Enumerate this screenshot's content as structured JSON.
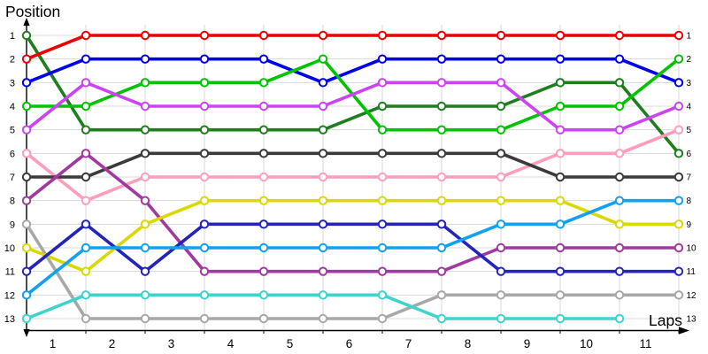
{
  "chart_data": {
    "type": "line",
    "title": "",
    "ylabel": "Position",
    "xlabel": "Laps",
    "x_tick_labels": [
      "1",
      "2",
      "3",
      "4",
      "5",
      "6",
      "7",
      "8",
      "9",
      "10",
      "11"
    ],
    "left_axis_labels": [
      "1",
      "2",
      "3",
      "4",
      "5",
      "6",
      "7",
      "8",
      "9",
      "10",
      "11",
      "12",
      "13"
    ],
    "right_axis_labels": [
      "1",
      "2",
      "3",
      "4",
      "5",
      "6",
      "7",
      "8",
      "9",
      "10",
      "11",
      "12",
      "13"
    ],
    "columns_per_series": 12,
    "y_axis_range": [
      1,
      13
    ],
    "y_axis_inverted": true,
    "grid": true,
    "legend": "none",
    "marker": "open-circle",
    "series": [
      {
        "name": "dark-green",
        "color": "#1e7e1e",
        "positions": [
          1,
          5,
          5,
          5,
          5,
          5,
          4,
          4,
          4,
          3,
          3,
          6
        ]
      },
      {
        "name": "red",
        "color": "#ee0000",
        "positions": [
          2,
          1,
          1,
          1,
          1,
          1,
          1,
          1,
          1,
          1,
          1,
          1
        ]
      },
      {
        "name": "blue",
        "color": "#0000ee",
        "positions": [
          3,
          2,
          2,
          2,
          2,
          3,
          2,
          2,
          2,
          2,
          2,
          3
        ]
      },
      {
        "name": "green",
        "color": "#00c300",
        "positions": [
          4,
          4,
          3,
          3,
          3,
          2,
          5,
          5,
          5,
          4,
          4,
          2
        ]
      },
      {
        "name": "magenta",
        "color": "#cc44f2",
        "positions": [
          5,
          3,
          4,
          4,
          4,
          4,
          3,
          3,
          3,
          5,
          5,
          4
        ]
      },
      {
        "name": "pink",
        "color": "#ff9dbb",
        "positions": [
          6,
          8,
          7,
          7,
          7,
          7,
          7,
          7,
          7,
          6,
          6,
          5
        ]
      },
      {
        "name": "dark-gray",
        "color": "#3a3a3a",
        "positions": [
          7,
          7,
          6,
          6,
          6,
          6,
          6,
          6,
          6,
          7,
          7,
          7
        ]
      },
      {
        "name": "purple",
        "color": "#a03aa0",
        "positions": [
          8,
          6,
          8,
          11,
          11,
          11,
          11,
          11,
          10,
          10,
          10,
          10
        ]
      },
      {
        "name": "gray",
        "color": "#a8a8a8",
        "positions": [
          9,
          13,
          13,
          13,
          13,
          13,
          13,
          12,
          12,
          12,
          12,
          12
        ]
      },
      {
        "name": "yellow",
        "color": "#d9d900",
        "positions": [
          10,
          11,
          9,
          8,
          8,
          8,
          8,
          8,
          8,
          8,
          9,
          9
        ]
      },
      {
        "name": "navy",
        "color": "#2424bb",
        "positions": [
          11,
          9,
          11,
          9,
          9,
          9,
          9,
          9,
          11,
          11,
          11,
          11
        ]
      },
      {
        "name": "light-blue",
        "color": "#12a0f0",
        "positions": [
          12,
          10,
          10,
          10,
          10,
          10,
          10,
          10,
          9,
          9,
          8,
          8
        ]
      },
      {
        "name": "cyan",
        "color": "#3ed4cc",
        "positions": [
          13,
          12,
          12,
          12,
          12,
          12,
          12,
          13,
          13,
          13,
          13,
          null
        ]
      }
    ],
    "colors": {
      "background": "#ffffff",
      "grid": "#d9d9d9",
      "axis": "#000000",
      "text": "#000000",
      "marker_fill": "#ffffff"
    }
  }
}
